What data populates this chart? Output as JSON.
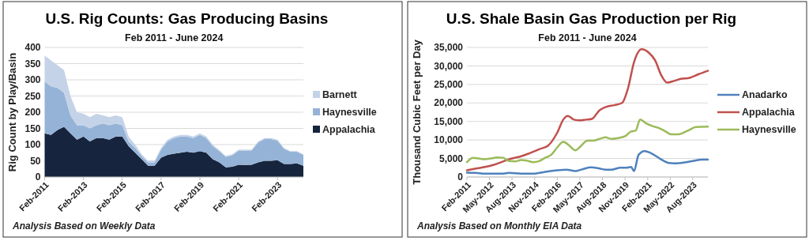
{
  "chart_data": [
    {
      "type": "area",
      "stacked": true,
      "title": "U.S. Rig Counts: Gas Producing Basins",
      "subtitle": "Feb 2011 - June 2024",
      "ylabel": "Rig Count by Play/Basin",
      "annotations": [
        "Analysis Based on Weekly Data"
      ],
      "x": [
        "2011-02",
        "2011-06",
        "2011-10",
        "2012-02",
        "2012-06",
        "2012-10",
        "2013-02",
        "2013-06",
        "2013-10",
        "2014-02",
        "2014-06",
        "2014-10",
        "2015-02",
        "2015-06",
        "2015-10",
        "2016-02",
        "2016-06",
        "2016-10",
        "2017-02",
        "2017-06",
        "2017-10",
        "2018-02",
        "2018-06",
        "2018-10",
        "2019-02",
        "2019-06",
        "2019-10",
        "2020-02",
        "2020-06",
        "2020-10",
        "2021-02",
        "2021-06",
        "2021-10",
        "2022-02",
        "2022-06",
        "2022-10",
        "2023-02",
        "2023-06",
        "2023-10",
        "2024-02",
        "2024-06"
      ],
      "series": [
        {
          "name": "Appalachia",
          "color": "#17243d",
          "values": [
            135,
            130,
            145,
            155,
            135,
            115,
            125,
            110,
            120,
            120,
            115,
            125,
            125,
            95,
            75,
            55,
            35,
            35,
            60,
            68,
            72,
            75,
            78,
            75,
            80,
            75,
            55,
            45,
            30,
            32,
            38,
            37,
            38,
            45,
            50,
            50,
            52,
            40,
            40,
            42,
            35
          ]
        },
        {
          "name": "Haynesville",
          "color": "#95b3d7",
          "values": [
            160,
            150,
            130,
            105,
            55,
            45,
            35,
            40,
            40,
            45,
            45,
            40,
            35,
            15,
            15,
            10,
            10,
            10,
            25,
            42,
            48,
            50,
            47,
            45,
            50,
            45,
            40,
            35,
            32,
            35,
            44,
            45,
            44,
            62,
            67,
            67,
            60,
            47,
            38,
            36,
            33
          ]
        },
        {
          "name": "Barnett",
          "color": "#c5d3e8",
          "values": [
            80,
            80,
            70,
            70,
            60,
            40,
            35,
            35,
            35,
            25,
            25,
            25,
            25,
            15,
            10,
            5,
            5,
            5,
            5,
            5,
            5,
            5,
            5,
            5,
            5,
            5,
            5,
            3,
            3,
            3,
            3,
            3,
            3,
            3,
            3,
            3,
            3,
            3,
            2,
            2,
            2
          ]
        }
      ],
      "xlim": [
        "2011-02",
        "2024-06"
      ],
      "xticks": [
        {
          "value": "2011-02",
          "label": "Feb-2011"
        },
        {
          "value": "2013-02",
          "label": "Feb-2013"
        },
        {
          "value": "2015-02",
          "label": "Feb-2015"
        },
        {
          "value": "2017-02",
          "label": "Feb-2017"
        },
        {
          "value": "2019-02",
          "label": "Feb-2019"
        },
        {
          "value": "2021-02",
          "label": "Feb-2021"
        },
        {
          "value": "2023-02",
          "label": "Feb-2023"
        }
      ],
      "ylim": [
        0,
        400
      ],
      "yticks": [
        0,
        50,
        100,
        150,
        200,
        250,
        300,
        350,
        400
      ],
      "grid": "y",
      "legend": "right"
    },
    {
      "type": "line",
      "title": "U.S. Shale Basin Gas Production per Rig",
      "subtitle": "Feb 2011 - June 2024",
      "ylabel": "Thousand Cubic Feet per Day",
      "annotations": [
        "Analysis Based on Monthly EIA Data"
      ],
      "series": [
        {
          "name": "Anadarko",
          "color": "#4f81bd",
          "x": [
            "2011-02",
            "2011-08",
            "2012-02",
            "2013-02",
            "2013-06",
            "2014-02",
            "2014-10",
            "2015-06",
            "2016-02",
            "2016-08",
            "2017-02",
            "2017-06",
            "2017-12",
            "2018-06",
            "2018-10",
            "2019-02",
            "2019-08",
            "2019-12",
            "2020-03",
            "2020-05",
            "2020-08",
            "2020-12",
            "2021-04",
            "2021-10",
            "2022-04",
            "2022-08",
            "2023-02",
            "2023-08",
            "2024-02",
            "2024-06"
          ],
          "values": [
            1200,
            1100,
            900,
            900,
            1100,
            900,
            900,
            1400,
            1800,
            2000,
            1600,
            2000,
            2600,
            2300,
            2000,
            2000,
            2500,
            2500,
            2700,
            1600,
            6000,
            7000,
            6500,
            5000,
            3800,
            3700,
            3900,
            4300,
            4700,
            4700
          ]
        },
        {
          "name": "Appalachia",
          "color": "#c0504d",
          "x": [
            "2011-02",
            "2011-08",
            "2012-02",
            "2012-08",
            "2013-02",
            "2013-08",
            "2014-02",
            "2014-08",
            "2015-02",
            "2015-08",
            "2016-02",
            "2016-06",
            "2016-09",
            "2017-01",
            "2017-05",
            "2017-09",
            "2018-01",
            "2018-06",
            "2018-11",
            "2019-04",
            "2019-09",
            "2020-01",
            "2020-05",
            "2020-10",
            "2021-03",
            "2021-07",
            "2021-11",
            "2022-03",
            "2022-08",
            "2022-12",
            "2023-06",
            "2023-12",
            "2024-06"
          ],
          "values": [
            1800,
            2300,
            2700,
            3300,
            4200,
            5000,
            5600,
            6500,
            7500,
            8500,
            12000,
            15500,
            16500,
            15500,
            15300,
            15500,
            15700,
            18000,
            19000,
            19400,
            20000,
            24000,
            31000,
            34500,
            33500,
            31500,
            27500,
            25500,
            26000,
            26500,
            26800,
            27800,
            28700
          ]
        },
        {
          "name": "Haynesville",
          "color": "#9bbb59",
          "x": [
            "2011-02",
            "2011-06",
            "2011-10",
            "2012-02",
            "2012-06",
            "2012-10",
            "2013-02",
            "2013-06",
            "2013-10",
            "2014-02",
            "2014-06",
            "2014-10",
            "2015-02",
            "2015-06",
            "2015-10",
            "2016-02",
            "2016-06",
            "2016-10",
            "2017-02",
            "2017-06",
            "2017-10",
            "2018-02",
            "2018-06",
            "2018-10",
            "2019-02",
            "2019-06",
            "2019-11",
            "2020-03",
            "2020-06",
            "2020-09",
            "2021-01",
            "2021-05",
            "2021-09",
            "2022-01",
            "2022-06",
            "2022-10",
            "2023-02",
            "2023-06",
            "2023-10",
            "2024-06"
          ],
          "values": [
            4000,
            5200,
            5000,
            4800,
            5000,
            5300,
            5200,
            4300,
            4200,
            4600,
            4400,
            4000,
            4300,
            5200,
            6000,
            8000,
            9500,
            8500,
            7200,
            8500,
            9800,
            9800,
            10300,
            10700,
            10300,
            10500,
            11000,
            12300,
            12500,
            15500,
            14500,
            13800,
            13300,
            12500,
            11500,
            11500,
            12000,
            12800,
            13500,
            13600
          ]
        }
      ],
      "xlim": [
        "2011-02",
        "2024-06"
      ],
      "xticks": [
        {
          "value": "2011-02",
          "label": "Feb-2011"
        },
        {
          "value": "2012-05",
          "label": "May-2012"
        },
        {
          "value": "2013-08",
          "label": "Aug-2013"
        },
        {
          "value": "2014-11",
          "label": "Nov-2014"
        },
        {
          "value": "2016-02",
          "label": "Feb-2016"
        },
        {
          "value": "2017-05",
          "label": "May-2017"
        },
        {
          "value": "2018-08",
          "label": "Aug-2018"
        },
        {
          "value": "2019-11",
          "label": "Nov-2019"
        },
        {
          "value": "2021-02",
          "label": "Feb-2021"
        },
        {
          "value": "2022-05",
          "label": "May-2022"
        },
        {
          "value": "2023-08",
          "label": "Aug-2023"
        }
      ],
      "ylim": [
        0,
        35000
      ],
      "yticks": [
        0,
        {
          "value": 5000,
          "label": "5,000"
        },
        {
          "value": 10000,
          "label": "10,000"
        },
        {
          "value": 15000,
          "label": "15,000"
        },
        {
          "value": 20000,
          "label": "20,000"
        },
        {
          "value": 25000,
          "label": "25,000"
        },
        {
          "value": 30000,
          "label": "30,000"
        },
        {
          "value": 35000,
          "label": "35,000"
        }
      ],
      "grid": "y",
      "legend": "right"
    }
  ]
}
